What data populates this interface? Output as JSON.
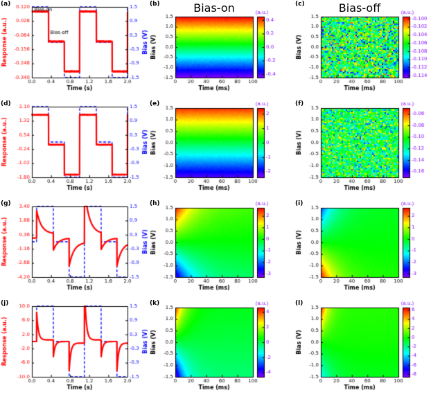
{
  "column_titles": {
    "bias_on": "Bias-on",
    "bias_off": "Bias-off"
  },
  "colors": {
    "response": "#ff0000",
    "bias": "#0000ff",
    "axis": "#000000"
  },
  "chart_data": [
    {
      "id": "a",
      "type": "line",
      "panel_label": "(a)",
      "xlabel": "Time (s)",
      "ylabel_left": "Response (a.u.)",
      "ylabel_right": "Bias (V)",
      "x_range": [
        0,
        2
      ],
      "x_ticks": [
        "0.0",
        "0.4",
        "0.8",
        "1.2",
        "1.6",
        "2.0"
      ],
      "y_left_range": [
        -0.34,
        0.12
      ],
      "y_left_ticks": [
        "0.120",
        "0.028",
        "-0.064",
        "-0.156",
        "-0.248",
        "-0.340"
      ],
      "y_right_range": [
        -1.5,
        1.5
      ],
      "y_right_ticks": [
        "1.5",
        "0.9",
        "0.3",
        "-0.3",
        "-0.9",
        "-1.5"
      ],
      "bias_wave": {
        "period": 1,
        "on_frac": 0.35,
        "off_frac": 0.68,
        "levels": [
          1.5,
          0,
          -1.5
        ],
        "shift": 0
      },
      "response": {
        "model": "follow",
        "gain": 0.13,
        "offset": -0.105,
        "noise": 0.004
      },
      "annotations": [
        {
          "text": "Bias-on",
          "x": 0.05,
          "y": 0.103
        },
        {
          "text": "Bias-off",
          "x": 0.38,
          "y": -0.048
        }
      ]
    },
    {
      "id": "b",
      "type": "heatmap",
      "panel_label": "(b)",
      "xlabel": "Time (ms)",
      "ylabel": "Bias (V)",
      "x_range": [
        0,
        100
      ],
      "x_ticks": [
        "0",
        "20",
        "40",
        "60",
        "80",
        "100"
      ],
      "y_range": [
        -1.5,
        1.5
      ],
      "y_ticks": [
        "1.5",
        "1.0",
        "0.5",
        "0.0",
        "-0.5",
        "-1.0",
        "-1.5"
      ],
      "colorbar": {
        "label": "(a.u.)",
        "ticks": [
          "0.4",
          "0.2",
          "0.0",
          "-0.2",
          "-0.4"
        ],
        "range": [
          -0.45,
          0.45
        ]
      },
      "field": {
        "model": "gradient",
        "scale": 0.45,
        "noise": 0.012
      }
    },
    {
      "id": "c",
      "type": "heatmap",
      "panel_label": "(c)",
      "xlabel": "Time (ms)",
      "ylabel": "Bias (V)",
      "x_range": [
        0,
        100
      ],
      "x_ticks": [
        "0",
        "20",
        "40",
        "60",
        "80",
        "100"
      ],
      "y_range": [
        -1.5,
        1.5
      ],
      "y_ticks": [
        "1.5",
        "1.0",
        "0.5",
        "0.0",
        "-0.5",
        "-1.0",
        "-1.5"
      ],
      "colorbar": {
        "label": "(a.u.)",
        "ticks": [
          "-0.100",
          "-0.102",
          "-0.104",
          "-0.106",
          "-0.108",
          "-0.110",
          "-0.112",
          "-0.114"
        ],
        "range": [
          -0.1145,
          -0.0995
        ]
      },
      "field": {
        "model": "noise",
        "base": -0.107,
        "amp": 0.007
      }
    },
    {
      "id": "d",
      "type": "line",
      "panel_label": "(d)",
      "xlabel": "Time (s)",
      "ylabel_left": "Response (a.u.)",
      "ylabel_right": "Bias (V)",
      "x_range": [
        0,
        2
      ],
      "x_ticks": [
        "0.0",
        "0.4",
        "0.8",
        "1.2",
        "1.6",
        "2.0"
      ],
      "y_left_range": [
        -1.8,
        2.1
      ],
      "y_left_ticks": [
        "2.10",
        "1.32",
        "0.54",
        "-0.24",
        "-1.02",
        "-1.80"
      ],
      "y_right_range": [
        -1.5,
        1.5
      ],
      "y_right_ticks": [
        "1.5",
        "0.9",
        "0.3",
        "-0.3",
        "-0.9",
        "-1.5"
      ],
      "bias_wave": {
        "period": 1,
        "on_frac": 0.35,
        "off_frac": 0.68,
        "levels": [
          1.5,
          0,
          -1.5
        ],
        "shift": 0
      },
      "response": {
        "model": "follow",
        "gain": 1.1,
        "offset": 0,
        "noise": 0.02
      },
      "annotations": []
    },
    {
      "id": "e",
      "type": "heatmap",
      "panel_label": "(e)",
      "xlabel": "Time (ms)",
      "ylabel": "Bias (V)",
      "x_range": [
        0,
        100
      ],
      "x_ticks": [
        "0",
        "20",
        "40",
        "60",
        "80",
        "100"
      ],
      "y_range": [
        -1.5,
        1.5
      ],
      "y_ticks": [
        "1.5",
        "1.0",
        "0.5",
        "0.0",
        "-0.5",
        "-1.0",
        "-1.5"
      ],
      "colorbar": {
        "label": "(a.u.)",
        "ticks": [
          "2",
          "1",
          "0",
          "-1",
          "-2"
        ],
        "range": [
          -2.4,
          2.4
        ]
      },
      "field": {
        "model": "gradient",
        "scale": 2.2,
        "noise": 0.06
      }
    },
    {
      "id": "f",
      "type": "heatmap",
      "panel_label": "(f)",
      "xlabel": "Time (ms)",
      "ylabel": "Bias (V)",
      "x_range": [
        0,
        100
      ],
      "x_ticks": [
        "0",
        "20",
        "40",
        "60",
        "80",
        "100"
      ],
      "y_range": [
        -1.5,
        1.5
      ],
      "y_ticks": [
        "1.5",
        "1.0",
        "0.5",
        "0.0",
        "-0.5",
        "-1.0",
        "-1.5"
      ],
      "colorbar": {
        "label": "(a.u.)",
        "ticks": [
          "-0.06",
          "-0.08",
          "-0.10",
          "-0.12",
          "-0.14",
          "-0.16"
        ],
        "range": [
          -0.17,
          -0.05
        ]
      },
      "field": {
        "model": "noise",
        "base": -0.11,
        "amp": 0.045
      }
    },
    {
      "id": "g",
      "type": "line",
      "panel_label": "(g)",
      "xlabel": "Time (s)",
      "ylabel_left": "Response (a.u.)",
      "ylabel_right": "Bias (V)",
      "x_range": [
        0,
        2
      ],
      "x_ticks": [
        "0.0",
        "0.4",
        "0.8",
        "1.2",
        "1.6",
        "2.0"
      ],
      "y_left_range": [
        -4.2,
        3.4
      ],
      "y_left_ticks": [
        "3.40",
        "1.88",
        "0.36",
        "-1.16",
        "-2.68",
        "-4.20"
      ],
      "y_right_range": [
        -1.5,
        1.5
      ],
      "y_right_ticks": [
        "1.5",
        "0.9",
        "0.3",
        "-0.3",
        "-0.9",
        "-1.5"
      ],
      "bias_wave": {
        "period": 1,
        "on_frac": 0.35,
        "off_frac": 0.68,
        "levels": [
          1.5,
          0,
          -1.5
        ],
        "shift": 0.1
      },
      "response": {
        "model": "rc",
        "gain_steady": 0.3,
        "gain_step": 1.7,
        "tau": 0.1,
        "off_factor": 0.55
      },
      "annotations": []
    },
    {
      "id": "h",
      "type": "heatmap",
      "panel_label": "(h)",
      "xlabel": "Time (ms)",
      "ylabel": "Bias (V)",
      "x_range": [
        0,
        100
      ],
      "x_ticks": [
        "0",
        "20",
        "40",
        "60",
        "80",
        "100"
      ],
      "y_range": [
        -1.5,
        1.5
      ],
      "y_ticks": [
        "1.5",
        "1.0",
        "0.5",
        "0.0",
        "-0.5",
        "-1.0",
        "-1.5"
      ],
      "colorbar": {
        "label": "(a.u.)",
        "ticks": [
          "2",
          "1",
          "0",
          "-1",
          "-2",
          "-3"
        ],
        "range": [
          -3.3,
          2.7
        ]
      },
      "field": {
        "model": "bias_decay",
        "noise": 0.05,
        "pos": {
          "amp": 2.3,
          "steady": 0.35,
          "tau": 22
        },
        "neg": {
          "amp": 2.6,
          "steady": 0.45,
          "tau": 22
        }
      }
    },
    {
      "id": "i",
      "type": "heatmap",
      "panel_label": "(i)",
      "xlabel": "Time (ms)",
      "ylabel": "Bias (V)",
      "x_range": [
        0,
        100
      ],
      "x_ticks": [
        "0",
        "20",
        "40",
        "60",
        "80",
        "100"
      ],
      "y_range": [
        -1.5,
        1.5
      ],
      "y_ticks": [
        "1.5",
        "1.0",
        "0.5",
        "0.0",
        "-0.5",
        "-1.0",
        "-1.5"
      ],
      "colorbar": {
        "label": "(a.u.)",
        "ticks": [
          "2",
          "1",
          "0",
          "-1",
          "-2",
          "-3"
        ],
        "range": [
          -3.3,
          2.7
        ]
      },
      "field": {
        "model": "bias_decay",
        "noise": 0.05,
        "pos": {
          "amp": -2.2,
          "steady": -0.1,
          "tau": 18
        },
        "neg": {
          "amp": -2.5,
          "steady": -0.15,
          "tau": 18
        }
      }
    },
    {
      "id": "j",
      "type": "line",
      "panel_label": "(j)",
      "xlabel": "Time (s)",
      "ylabel_left": "Response (a.u.)",
      "ylabel_right": "Bias (V)",
      "x_range": [
        0,
        2
      ],
      "x_ticks": [
        "0.0",
        "0.4",
        "0.8",
        "1.2",
        "1.6",
        "2.0"
      ],
      "y_left_range": [
        -10,
        10
      ],
      "y_left_ticks": [
        "10.0",
        "6.0",
        "2.0",
        "-2.0",
        "-6.0",
        "-10.0"
      ],
      "y_right_range": [
        -1.5,
        1.5
      ],
      "y_right_ticks": [
        "1.5",
        "0.9",
        "0.3",
        "-0.3",
        "-0.9",
        "-1.5"
      ],
      "bias_wave": {
        "period": 1,
        "on_frac": 0.35,
        "off_frac": 0.68,
        "levels": [
          1.5,
          0,
          -1.5
        ],
        "shift": 0.1
      },
      "response": {
        "model": "rc",
        "gain_steady": 0.3,
        "gain_step": 5.5,
        "tau": 0.035,
        "off_factor": 0.55
      },
      "annotations": []
    },
    {
      "id": "k",
      "type": "heatmap",
      "panel_label": "(k)",
      "xlabel": "Time (ms)",
      "ylabel": "Bias (V)",
      "x_range": [
        0,
        100
      ],
      "x_ticks": [
        "0",
        "20",
        "40",
        "60",
        "80",
        "100"
      ],
      "y_range": [
        -1.5,
        1.5
      ],
      "y_ticks": [
        "1.5",
        "1.0",
        "0.5",
        "0.0",
        "-0.5",
        "-1.0",
        "-1.5"
      ],
      "colorbar": {
        "label": "(a.u.)",
        "ticks": [
          "4",
          "2",
          "0",
          "-2",
          "-4"
        ],
        "range": [
          -4.6,
          4.6
        ]
      },
      "field": {
        "model": "bias_decay",
        "noise": 0.07,
        "pos": {
          "amp": 4.0,
          "steady": 0.3,
          "tau": 12
        },
        "neg": {
          "amp": 4.3,
          "steady": 0.4,
          "tau": 12
        }
      }
    },
    {
      "id": "l",
      "type": "heatmap",
      "panel_label": "(l)",
      "xlabel": "Time (ms)",
      "ylabel": "Bias (V)",
      "x_range": [
        0,
        100
      ],
      "x_ticks": [
        "0",
        "20",
        "40",
        "60",
        "80",
        "100"
      ],
      "y_range": [
        -1.5,
        1.5
      ],
      "y_ticks": [
        "1.5",
        "1.0",
        "0.5",
        "0.0",
        "-0.5",
        "-1.0",
        "-1.5"
      ],
      "colorbar": {
        "label": "(a.u.)",
        "ticks": [
          "6",
          "4",
          "2",
          "0",
          "-2",
          "-4",
          "-6",
          "-8"
        ],
        "range": [
          -8.6,
          6.5
        ]
      },
      "field": {
        "model": "bias_decay",
        "noise": 0.07,
        "pos": {
          "amp": 6.0,
          "steady": 0.25,
          "tau": 9
        },
        "neg": {
          "amp": 3.2,
          "steady": 0.5,
          "tau": 14
        }
      }
    }
  ]
}
